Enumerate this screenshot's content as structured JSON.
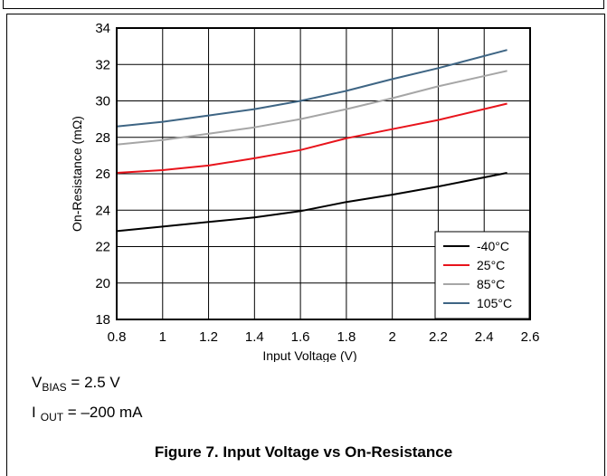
{
  "caption": "Figure 7. Input Voltage vs On-Resistance",
  "conditions": [
    {
      "symbol": "V",
      "subscript": "BIAS",
      "rest": " = 2.5 V"
    },
    {
      "symbol": "I",
      "subscript": "OUT",
      "rest": " = –200 mA"
    }
  ],
  "chart_data": {
    "type": "line",
    "title": "",
    "xlabel": "Input Voltage (V)",
    "ylabel": "On-Resistance (mΩ)",
    "xlim": [
      0.8,
      2.6
    ],
    "ylim": [
      18,
      34
    ],
    "xticks": [
      "0.8",
      "1",
      "1.2",
      "1.4",
      "1.6",
      "1.8",
      "2",
      "2.2",
      "2.4",
      "2.6"
    ],
    "yticks": [
      "18",
      "20",
      "22",
      "24",
      "26",
      "28",
      "30",
      "32",
      "34"
    ],
    "grid": true,
    "legend_position": "bottom-right",
    "watermark_id": "D057",
    "x": [
      0.8,
      1.0,
      1.2,
      1.4,
      1.6,
      1.8,
      2.0,
      2.2,
      2.5
    ],
    "series": [
      {
        "name": "-40°C",
        "color": "#000000",
        "values": [
          22.85,
          23.1,
          23.35,
          23.6,
          23.95,
          24.45,
          24.85,
          25.3,
          26.05
        ]
      },
      {
        "name": "25°C",
        "color": "#e8141c",
        "values": [
          26.05,
          26.2,
          26.45,
          26.85,
          27.3,
          27.95,
          28.45,
          28.95,
          29.85
        ]
      },
      {
        "name": "85°C",
        "color": "#a6a6a6",
        "values": [
          27.6,
          27.85,
          28.2,
          28.55,
          29.0,
          29.55,
          30.15,
          30.8,
          31.65
        ]
      },
      {
        "name": "105°C",
        "color": "#3e6584",
        "values": [
          28.6,
          28.85,
          29.2,
          29.55,
          30.0,
          30.55,
          31.2,
          31.8,
          32.8
        ]
      }
    ]
  }
}
